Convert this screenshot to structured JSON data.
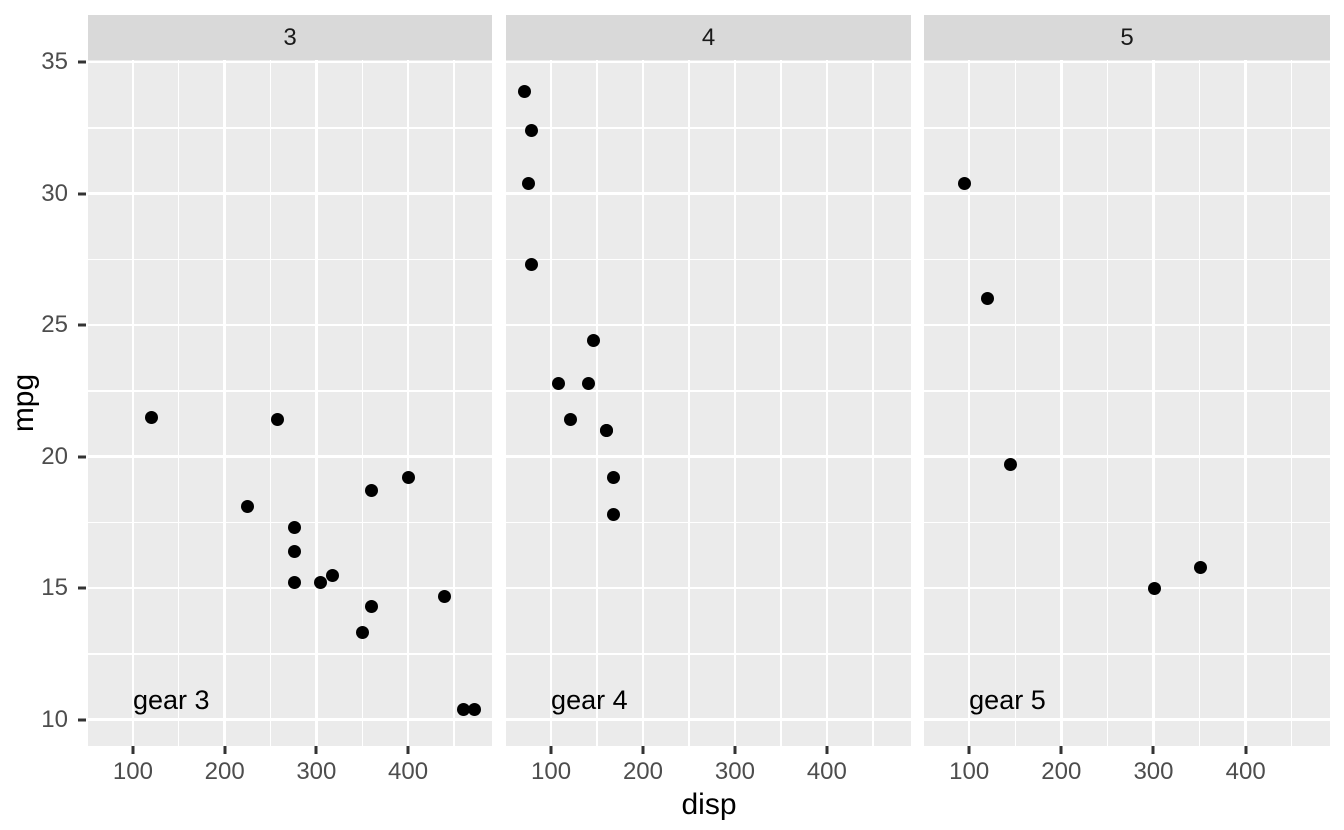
{
  "chart_data": {
    "type": "scatter",
    "title": "",
    "xlabel": "disp",
    "ylabel": "mpg",
    "facet_variable": "gear",
    "grid": true,
    "legend_position": "none",
    "xlim": [
      51,
      491.5
    ],
    "ylim": [
      9.0,
      35.08
    ],
    "x_ticks": [
      100,
      200,
      300,
      400
    ],
    "y_ticks": [
      10,
      15,
      20,
      25,
      30,
      35
    ],
    "x_minor_ticks": [
      50,
      150,
      250,
      350,
      450
    ],
    "y_minor_ticks": [
      7.5,
      12.5,
      17.5,
      22.5,
      27.5,
      32.5,
      37.5
    ],
    "colors": {
      "background": "#FFFFFF",
      "panel_bg": "#EBEBEB",
      "strip_bg": "#D9D9D9",
      "gridline": "#FFFFFF",
      "point": "#000000",
      "tick_mark": "#333333",
      "tick_label": "#4D4D4D",
      "strip_text": "#1A1A1A",
      "axis_title": "#000000",
      "annotation_text": "#000000"
    },
    "facets": [
      {
        "strip_label": "3",
        "annotation": {
          "label": "gear 3",
          "x": 100,
          "y": 10.7
        },
        "points": [
          [
            258,
            21.4
          ],
          [
            360,
            18.7
          ],
          [
            225,
            18.1
          ],
          [
            360,
            14.3
          ],
          [
            275.8,
            16.4
          ],
          [
            275.8,
            17.3
          ],
          [
            275.8,
            15.2
          ],
          [
            472,
            10.4
          ],
          [
            460,
            10.4
          ],
          [
            440,
            14.7
          ],
          [
            318,
            15.5
          ],
          [
            304,
            15.2
          ],
          [
            350,
            13.3
          ],
          [
            400,
            19.2
          ],
          [
            120.1,
            21.5
          ]
        ]
      },
      {
        "strip_label": "4",
        "annotation": {
          "label": "gear 4",
          "x": 100,
          "y": 10.7
        },
        "points": [
          [
            160,
            21.0
          ],
          [
            160,
            21.0
          ],
          [
            108,
            22.8
          ],
          [
            146.7,
            24.4
          ],
          [
            140.8,
            22.8
          ],
          [
            167.6,
            19.2
          ],
          [
            167.6,
            17.8
          ],
          [
            78.7,
            32.4
          ],
          [
            75.7,
            30.4
          ],
          [
            71.1,
            33.9
          ],
          [
            79,
            27.3
          ],
          [
            121,
            21.4
          ]
        ]
      },
      {
        "strip_label": "5",
        "annotation": {
          "label": "gear 5",
          "x": 100,
          "y": 10.7
        },
        "points": [
          [
            120.3,
            26.0
          ],
          [
            95.1,
            30.4
          ],
          [
            351,
            15.8
          ],
          [
            145,
            19.7
          ],
          [
            301,
            15.0
          ]
        ]
      }
    ]
  }
}
